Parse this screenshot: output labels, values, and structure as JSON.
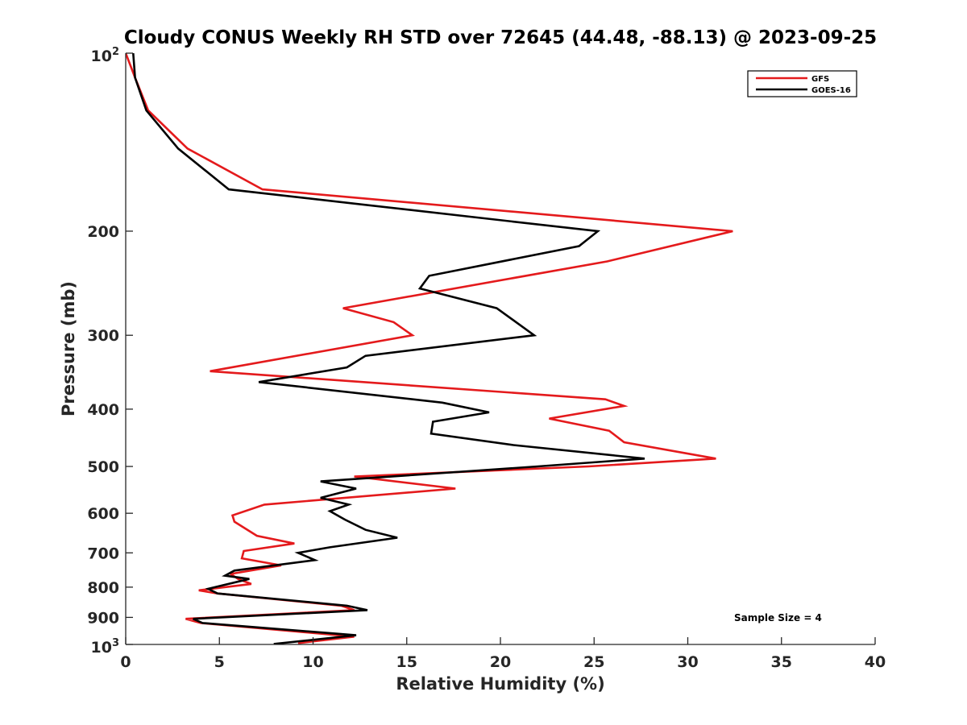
{
  "chart_data": {
    "type": "line",
    "title": "Cloudy CONUS Weekly RH STD over 72645 (44.48, -88.13) @ 2023-09-25",
    "xlabel": "Relative Humidity (%)",
    "ylabel": "Pressure (mb)",
    "xlim": [
      0,
      40
    ],
    "ylim": [
      100,
      1000
    ],
    "y_scale": "log",
    "y_reversed": true,
    "x_ticks": [
      0,
      5,
      10,
      15,
      20,
      25,
      30,
      35,
      40
    ],
    "x_tick_labels": [
      "0",
      "5",
      "10",
      "15",
      "20",
      "25",
      "30",
      "35",
      "40"
    ],
    "y_ticks": [
      200,
      300,
      400,
      500,
      600,
      700,
      800,
      900
    ],
    "y_tick_labels": [
      "200",
      "300",
      "400",
      "500",
      "600",
      "700",
      "800",
      "900"
    ],
    "y_end_labels": {
      "top_base": "10",
      "top_exp": "2",
      "bottom_base": "10",
      "bottom_exp": "3"
    },
    "grid": false,
    "legend_position": "top-right",
    "annotation": "Sample Size = 4",
    "series": [
      {
        "name": "GFS",
        "color": "#e41a1c",
        "points": [
          [
            0.0,
            100
          ],
          [
            0.5,
            110
          ],
          [
            1.2,
            125
          ],
          [
            3.3,
            145
          ],
          [
            7.3,
            170
          ],
          [
            32.4,
            200
          ],
          [
            25.7,
            225
          ],
          [
            11.6,
            270
          ],
          [
            14.3,
            285
          ],
          [
            15.3,
            300
          ],
          [
            4.5,
            345
          ],
          [
            25.6,
            385
          ],
          [
            26.6,
            395
          ],
          [
            22.6,
            415
          ],
          [
            25.8,
            435
          ],
          [
            26.6,
            455
          ],
          [
            31.5,
            485
          ],
          [
            24.7,
            500
          ],
          [
            12.2,
            520
          ],
          [
            17.6,
            545
          ],
          [
            7.4,
            580
          ],
          [
            5.7,
            605
          ],
          [
            5.8,
            620
          ],
          [
            7.0,
            655
          ],
          [
            9.0,
            675
          ],
          [
            6.3,
            695
          ],
          [
            6.2,
            715
          ],
          [
            8.3,
            735
          ],
          [
            5.6,
            760
          ],
          [
            6.0,
            775
          ],
          [
            6.7,
            790
          ],
          [
            3.9,
            810
          ],
          [
            4.9,
            820
          ],
          [
            11.5,
            860
          ],
          [
            12.2,
            875
          ],
          [
            3.2,
            905
          ],
          [
            4.0,
            920
          ],
          [
            12.2,
            970
          ],
          [
            9.2,
            995
          ]
        ]
      },
      {
        "name": "GOES-16",
        "color": "#000000",
        "points": [
          [
            0.4,
            100
          ],
          [
            0.5,
            110
          ],
          [
            1.1,
            125
          ],
          [
            2.8,
            145
          ],
          [
            5.5,
            170
          ],
          [
            25.2,
            200
          ],
          [
            24.2,
            212
          ],
          [
            16.2,
            238
          ],
          [
            15.7,
            250
          ],
          [
            19.8,
            270
          ],
          [
            21.8,
            300
          ],
          [
            12.8,
            325
          ],
          [
            11.8,
            340
          ],
          [
            7.1,
            360
          ],
          [
            16.9,
            390
          ],
          [
            19.4,
            405
          ],
          [
            16.4,
            420
          ],
          [
            16.3,
            440
          ],
          [
            20.7,
            460
          ],
          [
            27.7,
            485
          ],
          [
            22.0,
            500
          ],
          [
            10.4,
            530
          ],
          [
            12.3,
            545
          ],
          [
            10.4,
            565
          ],
          [
            11.9,
            580
          ],
          [
            10.9,
            595
          ],
          [
            11.7,
            615
          ],
          [
            12.8,
            640
          ],
          [
            14.5,
            660
          ],
          [
            10.9,
            685
          ],
          [
            9.2,
            700
          ],
          [
            10.1,
            720
          ],
          [
            5.8,
            750
          ],
          [
            5.3,
            765
          ],
          [
            6.6,
            775
          ],
          [
            4.4,
            805
          ],
          [
            4.9,
            820
          ],
          [
            11.8,
            860
          ],
          [
            12.9,
            875
          ],
          [
            3.6,
            905
          ],
          [
            4.1,
            920
          ],
          [
            12.3,
            965
          ],
          [
            7.9,
            998
          ]
        ]
      }
    ]
  }
}
